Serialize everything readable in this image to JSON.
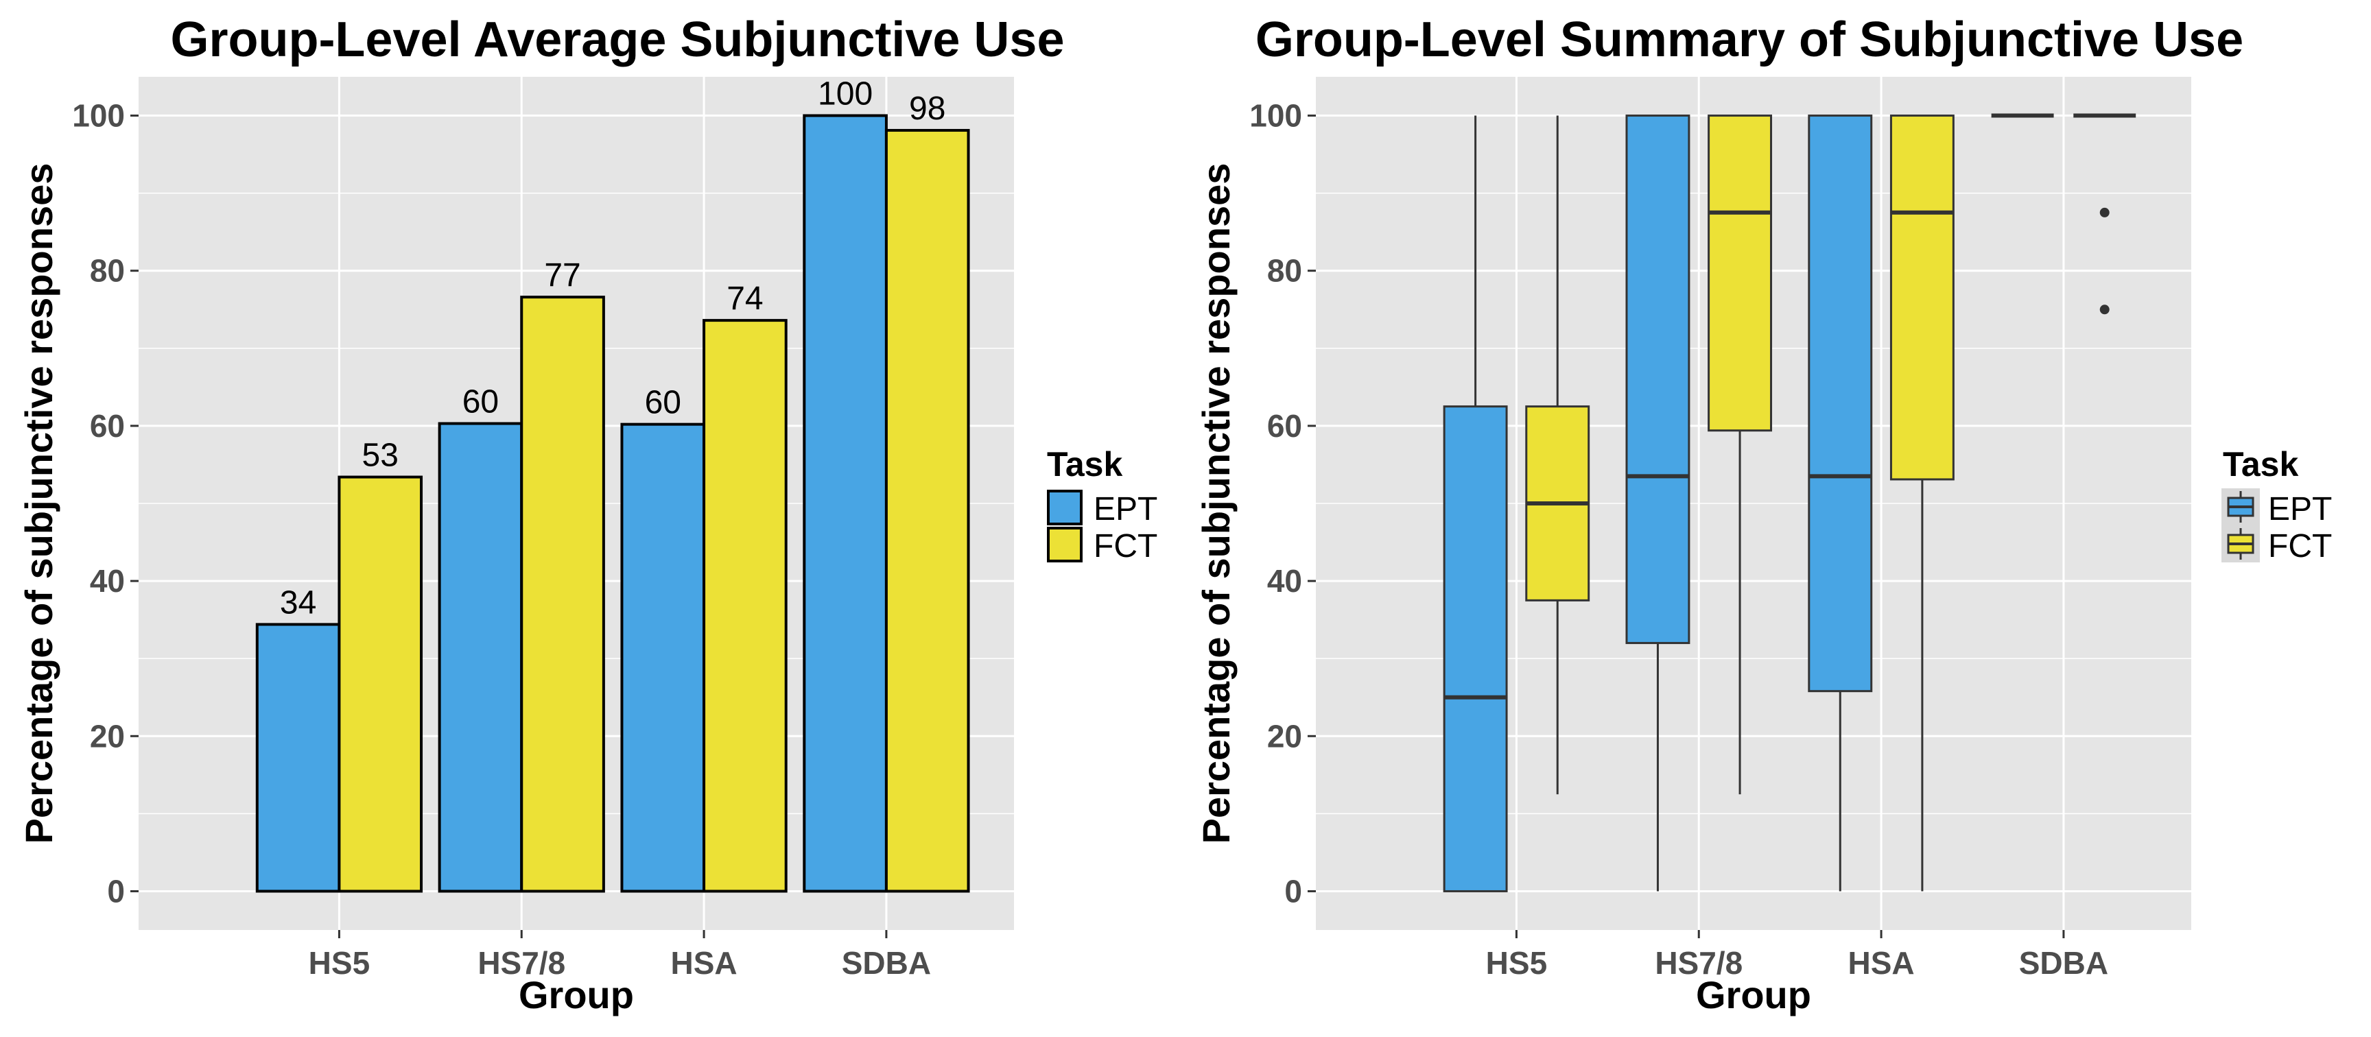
{
  "colors": {
    "EPT": "#48a5e4",
    "FCT": "#ece136",
    "panel_bg": "#e5e5e5",
    "grid": "#ffffff",
    "outline": "#000000"
  },
  "chart_data": [
    {
      "type": "bar",
      "title": "Group-Level Average Subjunctive Use",
      "xlabel": "Group",
      "ylabel": "Percentage of subjunctive responses",
      "categories": [
        "HS5",
        "HS7/8",
        "HSA",
        "SDBA"
      ],
      "series": [
        {
          "name": "EPT",
          "values": [
            34.4,
            60.3,
            60.2,
            100
          ]
        },
        {
          "name": "FCT",
          "values": [
            53.4,
            76.6,
            73.6,
            98.1
          ]
        }
      ],
      "data_labels": [
        [
          "34",
          "60",
          "60",
          "100"
        ],
        [
          "53",
          "77",
          "74",
          "98"
        ]
      ],
      "ylim": [
        -5,
        105
      ],
      "yticks": [
        0,
        20,
        40,
        60,
        80,
        100
      ],
      "grid": true,
      "legend": {
        "title": "Task",
        "entries": [
          "EPT",
          "FCT"
        ],
        "position": "right"
      }
    },
    {
      "type": "box",
      "title": "Group-Level Summary of Subjunctive Use",
      "xlabel": "Group",
      "ylabel": "Percentage of subjunctive responses",
      "categories": [
        "HS5",
        "HS7/8",
        "HSA",
        "SDBA"
      ],
      "series": [
        {
          "name": "EPT",
          "boxes": [
            {
              "min": 0,
              "q1": 0,
              "median": 25,
              "q3": 62.5,
              "max": 100,
              "outliers": []
            },
            {
              "min": 0,
              "q1": 32,
              "median": 53.5,
              "q3": 100,
              "max": 100,
              "outliers": []
            },
            {
              "min": 0,
              "q1": 25.8,
              "median": 53.5,
              "q3": 100,
              "max": 100,
              "outliers": []
            },
            {
              "min": 100,
              "q1": 100,
              "median": 100,
              "q3": 100,
              "max": 100,
              "outliers": []
            }
          ]
        },
        {
          "name": "FCT",
          "boxes": [
            {
              "min": 12.5,
              "q1": 37.5,
              "median": 50,
              "q3": 62.5,
              "max": 100,
              "outliers": []
            },
            {
              "min": 12.5,
              "q1": 59.4,
              "median": 87.5,
              "q3": 100,
              "max": 100,
              "outliers": []
            },
            {
              "min": 0,
              "q1": 53.1,
              "median": 87.5,
              "q3": 100,
              "max": 100,
              "outliers": []
            },
            {
              "min": 100,
              "q1": 100,
              "median": 100,
              "q3": 100,
              "max": 100,
              "outliers": [
                87.5,
                75
              ]
            }
          ]
        }
      ],
      "ylim": [
        -5,
        105
      ],
      "yticks": [
        0,
        20,
        40,
        60,
        80,
        100
      ],
      "grid": true,
      "legend": {
        "title": "Task",
        "entries": [
          "EPT",
          "FCT"
        ],
        "position": "right"
      }
    }
  ]
}
